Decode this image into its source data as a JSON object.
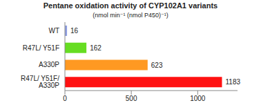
{
  "chart_data": {
    "type": "bar",
    "title": "Pentane oxidation activity of CYP102A1 variants",
    "subtitle": "(nmol min⁻¹ (nmol P450)⁻¹)",
    "orientation": "horizontal",
    "categories": [
      "WT",
      "R47L/ Y51F",
      "A330P",
      "R47L/ Y51F/ A330P"
    ],
    "values": [
      16,
      162,
      623,
      1183
    ],
    "colors": [
      "#8e9ee0",
      "#66dd22",
      "#ff9922",
      "#ff1111"
    ],
    "xlim": [
      0,
      1300
    ],
    "xticks": [
      0,
      500,
      1000
    ],
    "grid": false,
    "data_labels": true
  }
}
